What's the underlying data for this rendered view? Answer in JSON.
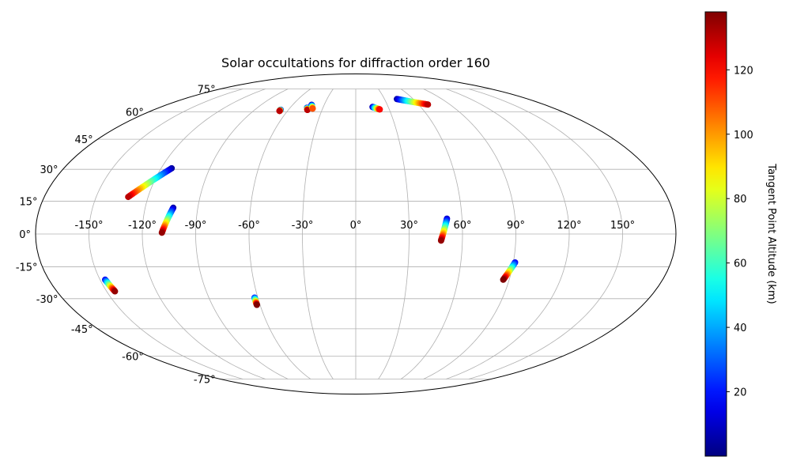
{
  "chart_data": {
    "type": "scatter",
    "projection": "mollweide",
    "title": "Solar occultations for diffraction order 160",
    "grid": true,
    "longitude_ticks": [
      -150,
      -120,
      -90,
      -60,
      -30,
      0,
      30,
      60,
      90,
      120,
      150
    ],
    "longitude_tick_labels": [
      "-150°",
      "-120°",
      "-90°",
      "-60°",
      "-30°",
      "0°",
      "30°",
      "60°",
      "90°",
      "120°",
      "150°"
    ],
    "latitude_ticks": [
      -75,
      -60,
      -45,
      -30,
      -15,
      0,
      15,
      30,
      45,
      60,
      75
    ],
    "latitude_tick_labels": [
      "-75°",
      "-60°",
      "-45°",
      "-30°",
      "-15°",
      "0°",
      "15°",
      "30°",
      "45°",
      "60°",
      "75°"
    ],
    "colorbar": {
      "label": "Tangent Point Altitude (km)",
      "range": [
        0,
        138
      ],
      "ticks": [
        20,
        40,
        60,
        80,
        100,
        120
      ],
      "tick_labels": [
        "20",
        "40",
        "60",
        "80",
        "100",
        "120"
      ],
      "colormap": "jet"
    },
    "series": [
      {
        "lon_start": -113.5,
        "lat_start": 30.5,
        "alt_start": 5,
        "lon_end": -131.5,
        "lat_end": 17.0,
        "alt_end": 130
      },
      {
        "lon_start": -104.0,
        "lat_start": 12.0,
        "alt_start": 5,
        "lon_end": -109.0,
        "lat_end": 0.6,
        "alt_end": 135
      },
      {
        "lon_start": -147.0,
        "lat_start": -21.0,
        "alt_start": 15,
        "lon_end": -145.0,
        "lat_end": -26.5,
        "alt_end": 135
      },
      {
        "lon_start": -67.0,
        "lat_start": 61.3,
        "alt_start": 5,
        "lon_end": -67.0,
        "lat_end": 60.6,
        "alt_end": 130
      },
      {
        "lon_start": -44.5,
        "lat_start": 62.5,
        "alt_start": 5,
        "lon_end": -43.0,
        "lat_end": 61.2,
        "alt_end": 130
      },
      {
        "lon_start": -42.0,
        "lat_start": 64.3,
        "alt_start": 5,
        "lon_end": -39.0,
        "lat_end": 62.0,
        "alt_end": 110
      },
      {
        "lon_start": -62.0,
        "lat_start": -29.5,
        "alt_start": 20,
        "lon_end": -62.0,
        "lat_end": -33.0,
        "alt_end": 138
      },
      {
        "lon_start": 15.5,
        "lat_start": 63.0,
        "alt_start": 5,
        "lon_end": 21.5,
        "lat_end": 61.5,
        "alt_end": 120
      },
      {
        "lon_start": 43.0,
        "lat_start": 68.0,
        "alt_start": 5,
        "lon_end": 69.0,
        "lat_end": 64.5,
        "alt_end": 130
      },
      {
        "lon_start": 51.5,
        "lat_start": 7.0,
        "alt_start": 10,
        "lon_end": 48.0,
        "lat_end": -3.0,
        "alt_end": 135
      },
      {
        "lon_start": 91.0,
        "lat_start": -13.0,
        "alt_start": 15,
        "lon_end": 86.5,
        "lat_end": -21.0,
        "alt_end": 138
      }
    ]
  }
}
